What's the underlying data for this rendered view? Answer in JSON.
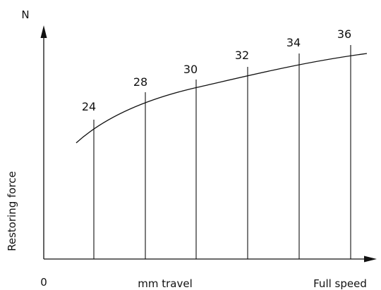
{
  "diagram": {
    "y_axis_unit": "N",
    "y_axis_title": "Restoring force",
    "x_axis_origin": "0",
    "x_axis_title": "mm travel",
    "x_axis_end": "Full speed",
    "line_color": "#111111",
    "markers": [
      {
        "label": "24"
      },
      {
        "label": "28"
      },
      {
        "label": "30"
      },
      {
        "label": "32"
      },
      {
        "label": "34"
      },
      {
        "label": "36"
      }
    ]
  }
}
